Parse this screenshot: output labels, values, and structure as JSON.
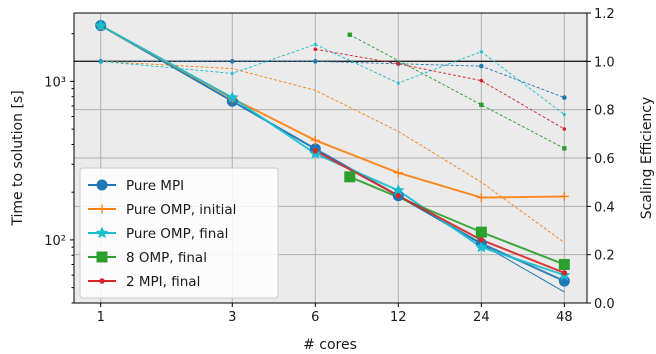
{
  "chart_data": {
    "type": "line",
    "title": "",
    "xlabel": "# cores",
    "ylabel": "Time to solution [s]",
    "y2label": "Scaling Efficiency",
    "x_scale": "log2",
    "y_scale": "log10",
    "x_ticks": [
      1,
      3,
      6,
      12,
      24,
      48
    ],
    "x_tick_labels": [
      "1",
      "3",
      "6",
      "12",
      "24",
      "48"
    ],
    "xlim": [
      0.8,
      58
    ],
    "ylim": [
      40,
      2700
    ],
    "y_ticks": [
      100,
      1000
    ],
    "y_tick_labels": [
      "10²",
      "10³"
    ],
    "y2lim": [
      0,
      1.2
    ],
    "y2_ticks": [
      0,
      0.2,
      0.4,
      0.6,
      0.8,
      1.0,
      1.2
    ],
    "y2_tick_labels": [
      "0.0",
      "0.2",
      "0.4",
      "0.6",
      "0.8",
      "1.0",
      "1.2"
    ],
    "reference_line_y2": 1.0,
    "grid": true,
    "legend_position": "lower-left",
    "ideal_scaling": {
      "x": [
        1,
        48
      ],
      "y": [
        2250,
        47
      ]
    },
    "series": [
      {
        "name": "Pure MPI",
        "color": "#1f77b4",
        "marker": "circle",
        "x": [
          1,
          3,
          6,
          12,
          24,
          48
        ],
        "y": [
          2250,
          750,
          375,
          190,
          95,
          55
        ],
        "efficiency": [
          1.0,
          1.0,
          1.0,
          0.99,
          0.98,
          0.85
        ]
      },
      {
        "name": "Pure OMP, initial",
        "color": "#ff7f0e",
        "marker": "plus",
        "x": [
          1,
          3,
          6,
          12,
          24,
          48
        ],
        "y": [
          2250,
          780,
          425,
          265,
          185,
          188
        ],
        "efficiency": [
          1.0,
          0.97,
          0.88,
          0.71,
          0.5,
          0.25
        ]
      },
      {
        "name": "Pure OMP, final",
        "color": "#17becf",
        "marker": "star",
        "x": [
          1,
          3,
          6,
          12,
          24,
          48
        ],
        "y": [
          2250,
          790,
          350,
          205,
          90,
          60
        ],
        "efficiency": [
          1.0,
          0.95,
          1.07,
          0.91,
          1.04,
          0.78
        ]
      },
      {
        "name": "8 OMP, final",
        "color": "#2ca02c",
        "marker": "square",
        "x": [
          8,
          24,
          48
        ],
        "y": [
          250,
          112,
          70
        ],
        "efficiency": [
          1.11,
          0.82,
          0.64
        ]
      },
      {
        "name": "2 MPI, final",
        "color": "#d62728",
        "marker": "dot",
        "x": [
          6,
          12,
          24,
          48
        ],
        "y": [
          365,
          190,
          100,
          62
        ],
        "efficiency": [
          1.05,
          0.99,
          0.92,
          0.72
        ]
      }
    ]
  }
}
